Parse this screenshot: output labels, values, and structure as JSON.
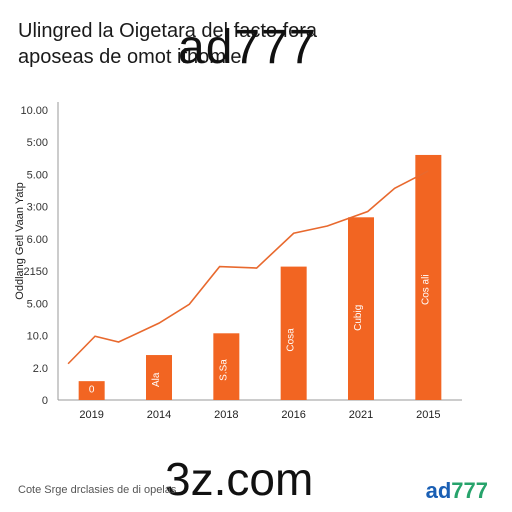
{
  "header": {
    "title_line1": "Ulingred la Oigetara del        facto fora",
    "title_line2": "aposeas de omot        ifhomie"
  },
  "watermarks": {
    "top": "ad777",
    "bottom": "3z.com",
    "corner_a": "ad",
    "corner_b": "777"
  },
  "footnote": "Cote Srge drclasies de di opelas",
  "chart_data": {
    "type": "bar",
    "ylabel": "Oddlang Getl Vaan Yatp",
    "categories": [
      "2019",
      "2014",
      "2018",
      "2016",
      "2021",
      "2015"
    ],
    "y_tick_labels": [
      "0",
      "2.0",
      "10.0",
      "5.00",
      "2150",
      "6.00",
      "3:00",
      "5.00",
      "5:00",
      "10.00"
    ],
    "bar_color": "#f26522",
    "line_color": "#e8692e",
    "series": [
      {
        "type": "bar",
        "values": [
          0.65,
          1.55,
          2.3,
          4.6,
          6.3,
          8.45
        ],
        "labels": [
          "0",
          "Ala",
          "S.Sa",
          "Cosa",
          "Cubig",
          "Cos ali"
        ]
      },
      {
        "type": "line",
        "x": [
          0.15,
          0.55,
          0.9,
          1.5,
          1.95,
          2.4,
          2.95,
          3.5,
          4.0,
          4.6,
          5.0,
          5.5
        ],
        "values": [
          1.25,
          2.2,
          2.0,
          2.65,
          3.3,
          4.6,
          4.55,
          5.75,
          6.0,
          6.5,
          7.3,
          7.9
        ]
      }
    ],
    "ylim": [
      0,
      10
    ],
    "grid": false
  }
}
